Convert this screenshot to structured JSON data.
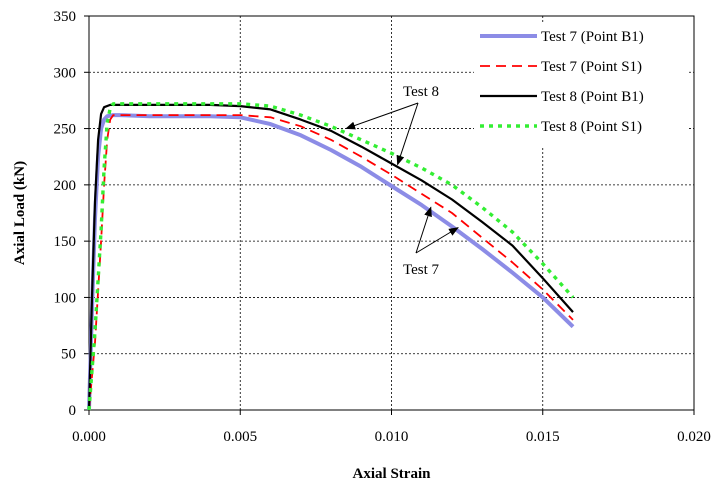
{
  "chart_data": {
    "type": "line",
    "xlabel": "Axial Strain",
    "ylabel": "Axial Load (kN)",
    "xlim": [
      0,
      0.02
    ],
    "ylim": [
      0,
      350
    ],
    "xticks": [
      0,
      0.005,
      0.01,
      0.015,
      0.02
    ],
    "xtick_labels": [
      "0.000",
      "0.005",
      "0.010",
      "0.015",
      "0.020"
    ],
    "yticks": [
      0,
      50,
      100,
      150,
      200,
      250,
      300,
      350
    ],
    "ytick_labels": [
      "0",
      "50",
      "100",
      "150",
      "200",
      "250",
      "300",
      "350"
    ],
    "grid": "dashed major gridlines",
    "legend_position": "top-right",
    "series": [
      {
        "name": "Test 7 (Point B1)",
        "color": "#8c8ce6",
        "style": "solid-thick",
        "x": [
          0,
          0.0001,
          0.0002,
          0.0003,
          0.0004,
          0.0005,
          0.0006,
          0.0008,
          0.001,
          0.002,
          0.003,
          0.004,
          0.005,
          0.006,
          0.007,
          0.008,
          0.009,
          0.01,
          0.011,
          0.012,
          0.013,
          0.014,
          0.015,
          0.016
        ],
        "y": [
          0,
          90,
          170,
          225,
          250,
          258,
          261,
          262,
          262,
          261,
          261,
          261,
          260,
          254,
          244,
          231,
          216,
          199,
          182,
          163,
          143,
          122,
          100,
          74
        ]
      },
      {
        "name": "Test 7 (Point S1)",
        "color": "#ff0000",
        "style": "dashed",
        "x": [
          0,
          0.0002,
          0.0004,
          0.0005,
          0.0006,
          0.0007,
          0.0008,
          0.001,
          0.002,
          0.003,
          0.004,
          0.005,
          0.006,
          0.007,
          0.008,
          0.009,
          0.01,
          0.011,
          0.012,
          0.013,
          0.014,
          0.015,
          0.016
        ],
        "y": [
          0,
          60,
          150,
          200,
          240,
          258,
          262,
          262,
          262,
          262,
          262,
          262,
          260,
          252,
          240,
          225,
          209,
          192,
          175,
          153,
          131,
          107,
          80
        ]
      },
      {
        "name": "Test 8 (Point B1)",
        "color": "#000000",
        "style": "solid",
        "x": [
          0,
          0.0001,
          0.0002,
          0.0003,
          0.0004,
          0.0005,
          0.0007,
          0.001,
          0.002,
          0.003,
          0.004,
          0.005,
          0.006,
          0.007,
          0.008,
          0.009,
          0.01,
          0.011,
          0.012,
          0.013,
          0.014,
          0.015,
          0.016
        ],
        "y": [
          0,
          100,
          185,
          240,
          263,
          269,
          271,
          271,
          271,
          271,
          271,
          270,
          267,
          258,
          248,
          234,
          219,
          204,
          187,
          167,
          146,
          117,
          87
        ]
      },
      {
        "name": "Test 8 (Point S1)",
        "color": "#33ee33",
        "style": "dotted",
        "x": [
          0,
          0.0002,
          0.0004,
          0.0005,
          0.0006,
          0.0007,
          0.0008,
          0.001,
          0.002,
          0.003,
          0.004,
          0.005,
          0.006,
          0.007,
          0.008,
          0.009,
          0.01,
          0.011,
          0.012,
          0.013,
          0.014,
          0.015,
          0.016
        ],
        "y": [
          0,
          70,
          160,
          215,
          255,
          268,
          272,
          272,
          272,
          272,
          272,
          272,
          270,
          262,
          252,
          240,
          228,
          215,
          200,
          180,
          158,
          130,
          100
        ]
      }
    ],
    "annotations": [
      {
        "text": "Test 8",
        "arrow_targets": [
          [
            0.0085,
            250
          ],
          [
            0.0102,
            218
          ]
        ]
      },
      {
        "text": "Test 7",
        "arrow_targets": [
          [
            0.0113,
            180
          ],
          [
            0.0122,
            162
          ]
        ]
      }
    ]
  }
}
